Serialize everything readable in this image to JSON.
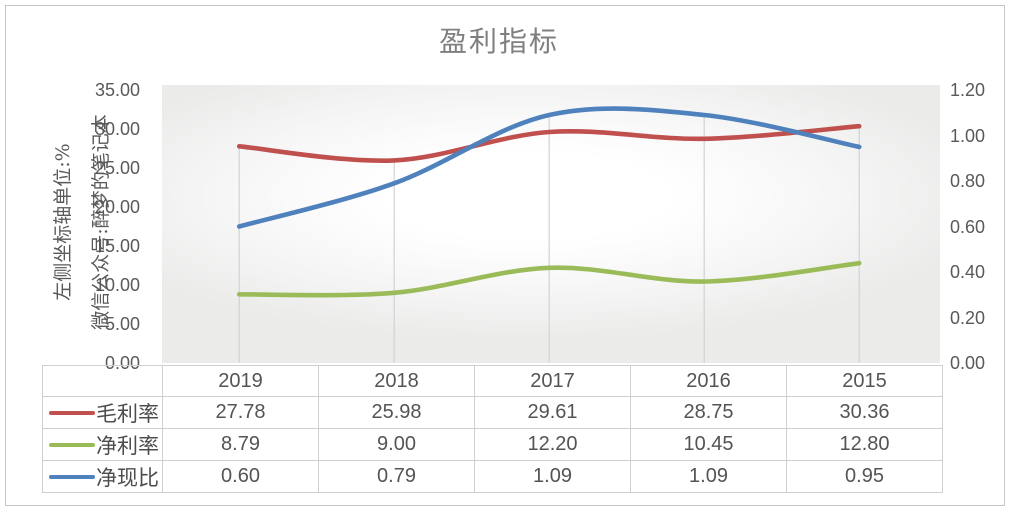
{
  "window": {
    "background_color": "#ffffff",
    "border_color": "#c6c6c6"
  },
  "chart_data": {
    "type": "line",
    "title": "盈利指标",
    "smooth": true,
    "categories": [
      "2019",
      "2018",
      "2017",
      "2016",
      "2015"
    ],
    "series": [
      {
        "name": "毛利率",
        "axis": "left",
        "color": "#C0504D",
        "values": [
          27.78,
          25.98,
          29.61,
          28.75,
          30.36
        ]
      },
      {
        "name": "净利率",
        "axis": "left",
        "color": "#9BBB59",
        "values": [
          8.79,
          9.0,
          12.2,
          10.45,
          12.8
        ]
      },
      {
        "name": "净现比",
        "axis": "right",
        "color": "#4F81BD",
        "values": [
          0.6,
          0.79,
          1.09,
          1.09,
          0.95
        ]
      }
    ],
    "left_axis": {
      "min": 0,
      "max": 35,
      "ticks": [
        "35.00",
        "30.00",
        "25.00",
        "20.00",
        "15.00",
        "10.00",
        "5.00",
        "0.00"
      ],
      "title_lines": [
        "左侧坐标轴单位:%",
        "微信公众号:醉梦的笔记本"
      ]
    },
    "right_axis": {
      "min": 0,
      "max": 1.2,
      "ticks": [
        "1.20",
        "1.00",
        "0.80",
        "0.60",
        "0.40",
        "0.20",
        "0.00"
      ]
    },
    "gridlines": "vertical drop line from highest point of each category to axis",
    "legend_position": "table left column",
    "value_decimals": 2,
    "colors": {
      "drop_line": "#d2d2d2",
      "tick_text": "#595959",
      "title_text": "#7f7f7f",
      "table_text": "#545454",
      "table_border": "#cfcfcf"
    }
  }
}
